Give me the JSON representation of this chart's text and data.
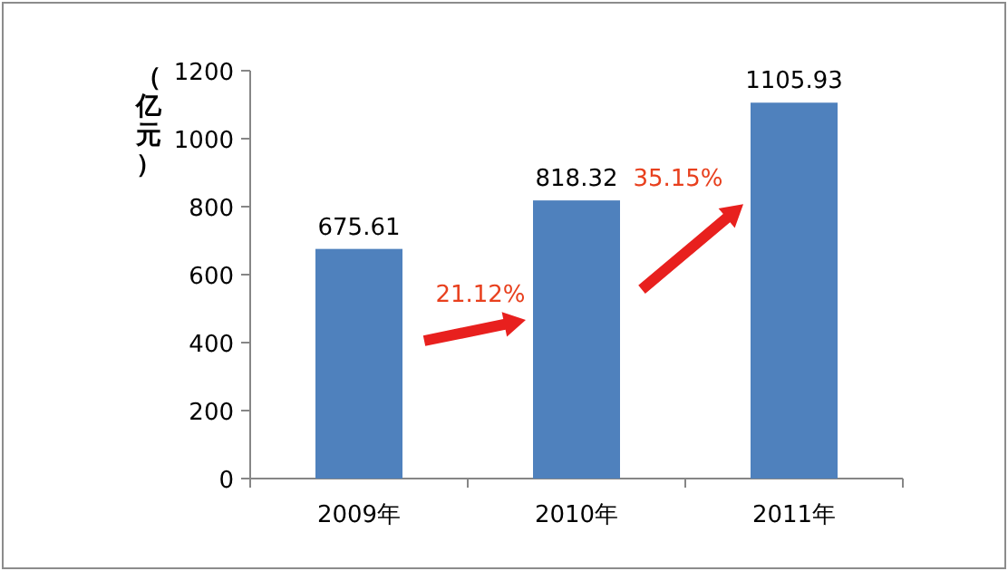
{
  "chart_data": {
    "type": "bar",
    "ylabel": "（亿元）",
    "categories": [
      "2009年",
      "2010年",
      "2011年"
    ],
    "values": [
      675.61,
      818.32,
      1105.93
    ],
    "color": "#4f81bd",
    "ylim": [
      0,
      1200
    ],
    "yticks": [
      0,
      200,
      400,
      600,
      800,
      1000,
      1200
    ],
    "data_labels": true,
    "grid": false,
    "annotations": [
      "21.12%",
      "35.15%"
    ]
  }
}
